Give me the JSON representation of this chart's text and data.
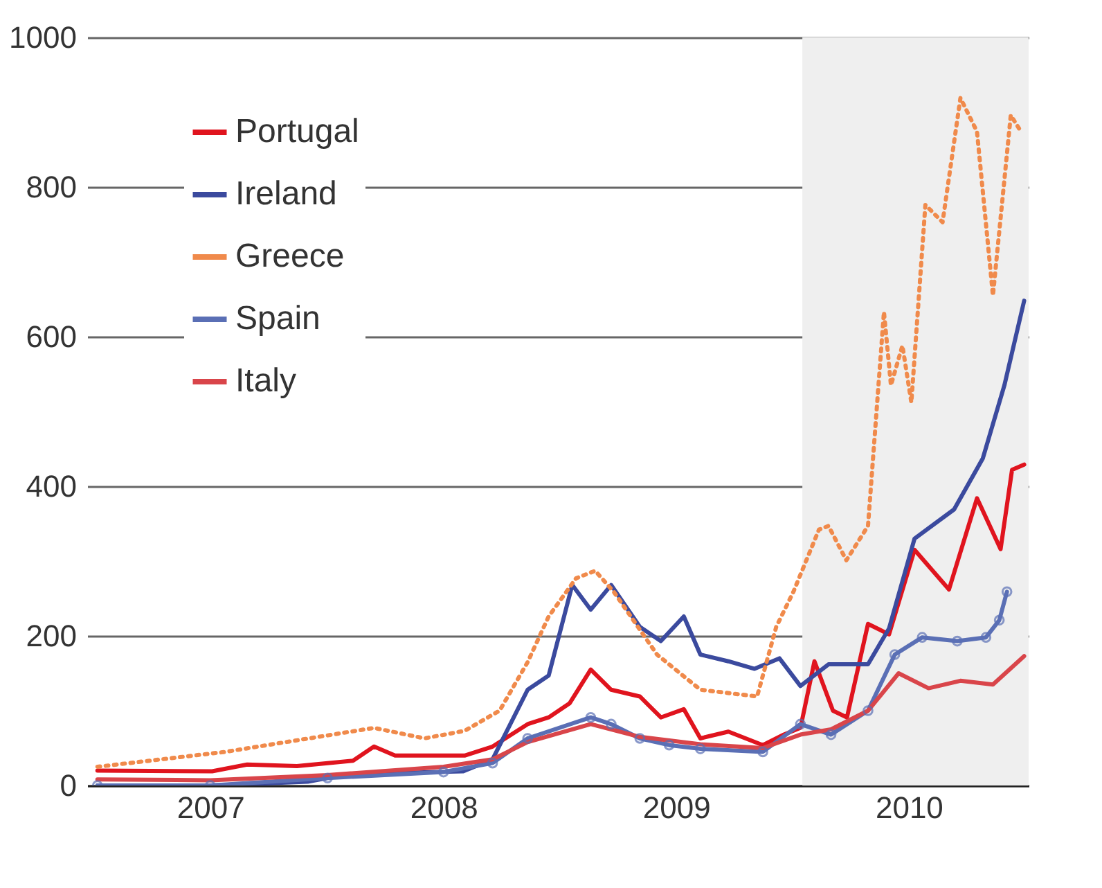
{
  "chart_data": {
    "type": "line",
    "legend": "top left",
    "grid": "y",
    "ylim": [
      0,
      1000
    ],
    "yticks": [
      0,
      200,
      400,
      600,
      800,
      1000
    ],
    "xlim": [
      "2006-12-20",
      "2011-01-05"
    ],
    "xticks": [
      {
        "value": "2007-07-01",
        "label": "2007"
      },
      {
        "value": "2008-07-01",
        "label": "2008"
      },
      {
        "value": "2009-07-01",
        "label": "2009"
      },
      {
        "value": "2010-07-01",
        "label": "2010"
      }
    ],
    "bands": [
      {
        "axis": "x",
        "from": "2010-01-15",
        "to": "2011-01-05",
        "color": "#efefef"
      }
    ],
    "series": [
      {
        "name": "Portugal",
        "color": "#e0141e",
        "line_style": "solid",
        "x": [
          "2007-01-05",
          "2007-07-04",
          "2007-08-28",
          "2007-11-14",
          "2008-02-10",
          "2008-03-14",
          "2008-04-16",
          "2008-08-03",
          "2008-09-16",
          "2008-11-10",
          "2008-12-13",
          "2009-01-15",
          "2009-02-17",
          "2009-03-21",
          "2009-05-05",
          "2009-06-07",
          "2009-07-13",
          "2009-08-08",
          "2009-09-21",
          "2009-11-14",
          "2009-12-17",
          "2010-01-12",
          "2010-02-03",
          "2010-03-04",
          "2010-03-26",
          "2010-04-28",
          "2010-05-31",
          "2010-07-10",
          "2010-09-02",
          "2010-10-16",
          "2010-11-22",
          "2010-12-10",
          "2010-12-29"
        ],
        "values": [
          20,
          19,
          28,
          26,
          33,
          52,
          40,
          40,
          52,
          82,
          91,
          110,
          155,
          128,
          119,
          91,
          102,
          63,
          72,
          54,
          68,
          77,
          166,
          100,
          91,
          216,
          202,
          315,
          262,
          384,
          316,
          422,
          429
        ]
      },
      {
        "name": "Ireland",
        "color": "#3b4a9e",
        "line_style": "solid",
        "x": [
          "2007-01-05",
          "2007-07-01",
          "2007-12-01",
          "2008-02-01",
          "2008-08-01",
          "2008-09-16",
          "2008-11-10",
          "2008-12-13",
          "2009-01-19",
          "2009-02-17",
          "2009-03-21",
          "2009-05-05",
          "2009-06-07",
          "2009-07-13",
          "2009-08-08",
          "2009-09-21",
          "2009-11-01",
          "2009-12-10",
          "2010-01-12",
          "2010-02-25",
          "2010-04-28",
          "2010-05-31",
          "2010-07-10",
          "2010-09-10",
          "2010-10-25",
          "2010-11-28",
          "2010-12-29"
        ],
        "values": [
          0,
          0,
          5,
          15,
          19,
          35,
          128,
          147,
          268,
          235,
          268,
          212,
          193,
          226,
          175,
          166,
          156,
          170,
          133,
          162,
          162,
          210,
          330,
          369,
          437,
          535,
          648
        ]
      },
      {
        "name": "Greece",
        "color": "#f08a4b",
        "line_style": "dotted",
        "x": [
          "2007-01-05",
          "2007-07-25",
          "2008-03-14",
          "2008-06-01",
          "2008-08-03",
          "2008-09-27",
          "2008-11-10",
          "2008-12-13",
          "2009-01-25",
          "2009-02-24",
          "2009-03-25",
          "2009-06-01",
          "2009-08-08",
          "2009-11-05",
          "2009-12-05",
          "2010-01-01",
          "2010-02-10",
          "2010-02-25",
          "2010-03-25",
          "2010-04-28",
          "2010-05-23",
          "2010-06-03",
          "2010-06-21",
          "2010-07-05",
          "2010-07-27",
          "2010-08-23",
          "2010-09-20",
          "2010-10-16",
          "2010-11-10",
          "2010-12-08",
          "2010-12-24"
        ],
        "values": [
          25,
          45,
          77,
          63,
          73,
          100,
          165,
          226,
          277,
          287,
          259,
          175,
          128,
          119,
          212,
          259,
          342,
          347,
          301,
          347,
          633,
          535,
          588,
          512,
          776,
          753,
          919,
          874,
          655,
          896,
          874
        ]
      },
      {
        "name": "Spain",
        "color": "#5a6fb5",
        "line_style": "solid",
        "marker": "circle",
        "x": [
          "2007-01-05",
          "2007-07-01",
          "2008-01-01",
          "2008-07-01",
          "2008-09-16",
          "2008-11-10",
          "2009-02-17",
          "2009-03-21",
          "2009-05-05",
          "2009-06-20",
          "2009-08-08",
          "2009-11-14",
          "2010-01-12",
          "2010-03-01",
          "2010-04-28",
          "2010-06-09",
          "2010-07-22",
          "2010-09-15",
          "2010-10-30",
          "2010-11-20",
          "2010-12-02"
        ],
        "values": [
          0,
          0,
          10,
          18,
          30,
          63,
          91,
          82,
          63,
          54,
          49,
          45,
          82,
          68,
          100,
          175,
          198,
          193,
          198,
          221,
          259
        ]
      },
      {
        "name": "Italy",
        "color": "#d9454a",
        "line_style": "solid",
        "x": [
          "2007-01-05",
          "2007-07-01",
          "2008-01-01",
          "2008-07-01",
          "2008-09-16",
          "2008-11-10",
          "2009-02-17",
          "2009-05-05",
          "2009-08-08",
          "2009-11-14",
          "2010-01-12",
          "2010-03-01",
          "2010-04-28",
          "2010-06-15",
          "2010-08-01",
          "2010-09-20",
          "2010-11-10",
          "2010-12-29"
        ],
        "values": [
          8,
          7,
          14,
          25,
          35,
          58,
          82,
          65,
          55,
          50,
          68,
          75,
          100,
          150,
          130,
          140,
          135,
          173
        ]
      }
    ]
  }
}
